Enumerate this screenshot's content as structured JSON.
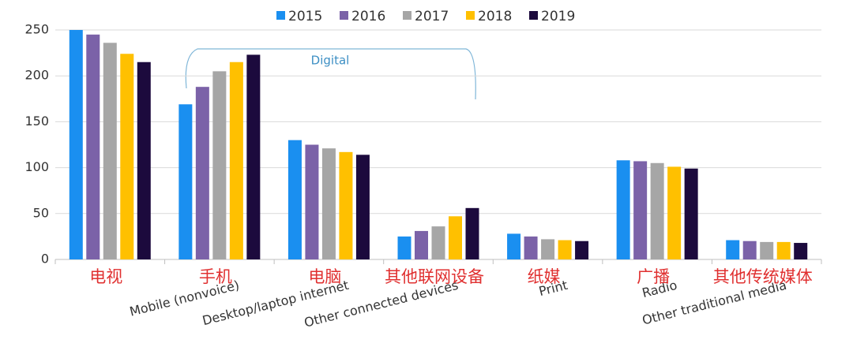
{
  "chart_data": {
    "type": "bar",
    "categories": [
      "电视",
      "手机",
      "电脑",
      "其他联网设备",
      "纸媒",
      "广播",
      "其他传统媒体"
    ],
    "category_labels_en": [
      null,
      "Mobile (nonvoice)",
      "Desktop/laptop internet",
      "Other connected devices",
      "Print",
      "Radio",
      "Other traditional media"
    ],
    "series": [
      {
        "name": "2015",
        "color": "#1a8ff0",
        "values": [
          250,
          169,
          130,
          25,
          28,
          108,
          21
        ]
      },
      {
        "name": "2016",
        "color": "#7b62a8",
        "values": [
          245,
          188,
          125,
          31,
          25,
          107,
          20
        ]
      },
      {
        "name": "2017",
        "color": "#a6a6a6",
        "values": [
          236,
          205,
          121,
          36,
          22,
          105,
          19
        ]
      },
      {
        "name": "2018",
        "color": "#ffc000",
        "values": [
          224,
          215,
          117,
          47,
          21,
          101,
          19
        ]
      },
      {
        "name": "2019",
        "color": "#1c0a3d",
        "values": [
          215,
          223,
          114,
          56,
          20,
          99,
          18
        ]
      }
    ],
    "annotation": "Digital",
    "ylim": [
      0,
      250
    ],
    "yticks": [
      0,
      50,
      100,
      150,
      200,
      250
    ],
    "grid": true,
    "legend": "top"
  }
}
